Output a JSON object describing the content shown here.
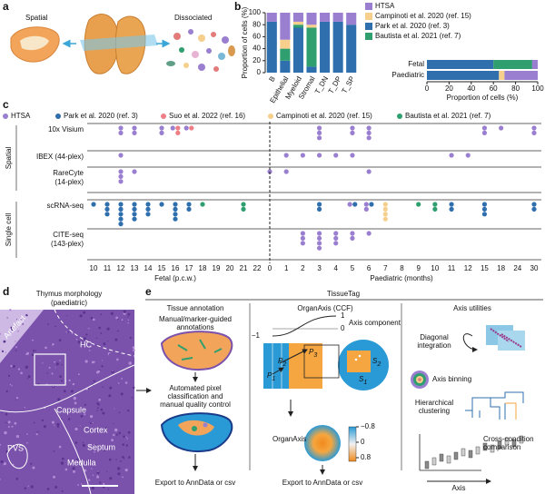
{
  "panel_a": {
    "label": "a",
    "spatial": "Spatial",
    "dissociated": "Dissociated"
  },
  "chart_data": [
    {
      "type": "stacked_bar",
      "panel_label": "b",
      "ylabel": "Proportion of cells (%)",
      "categories": [
        "B",
        "Epithelial",
        "Myeloid",
        "Stromal",
        "T_DN",
        "T_DP",
        "T_SP"
      ],
      "ylim": [
        0,
        100
      ],
      "yticks": [
        0,
        20,
        40,
        60,
        80,
        100
      ],
      "series": [
        {
          "name": "HTSA",
          "color": "#9a7fd0",
          "values": [
            15,
            45,
            15,
            20,
            15,
            15,
            20
          ]
        },
        {
          "name": "Campinoti et al. 2020 (ref. 15)",
          "color": "#f6cf8c",
          "values": [
            0,
            15,
            5,
            5,
            0,
            0,
            0
          ]
        },
        {
          "name": "Park et al. 2020 (ref. 3)",
          "color": "#2f6fae",
          "values": [
            85,
            20,
            75,
            10,
            85,
            85,
            80
          ]
        },
        {
          "name": "Bautista et al. 2021 (ref. 7)",
          "color": "#2f9f6f",
          "values": [
            0,
            20,
            5,
            65,
            0,
            0,
            0
          ]
        }
      ]
    },
    {
      "type": "stacked_hbar",
      "xlabel": "Proportion of cells (%)",
      "categories": [
        "Fetal",
        "Paediatric"
      ],
      "xlim": [
        0,
        100
      ],
      "xticks": [
        0,
        20,
        40,
        60,
        80,
        100
      ],
      "series": [
        {
          "name": "HTSA",
          "color": "#9a7fd0",
          "values": [
            5,
            30
          ]
        },
        {
          "name": "Campinoti et al. 2020 (ref. 15)",
          "color": "#f6cf8c",
          "values": [
            0,
            5
          ]
        },
        {
          "name": "Park et al. 2020 (ref. 3)",
          "color": "#2f6fae",
          "values": [
            60,
            65
          ]
        },
        {
          "name": "Bautista et al. 2021 (ref. 7)",
          "color": "#2f9f6f",
          "values": [
            35,
            0
          ]
        }
      ]
    },
    {
      "type": "dot_matrix",
      "panel_label": "c",
      "series": [
        {
          "name": "HTSA",
          "color": "#9a7fd0"
        },
        {
          "name": "Park et al. 2020 (ref. 3)",
          "color": "#2f6fae"
        },
        {
          "name": "Suo et al. 2022 (ref. 16)",
          "color": "#ee7f86"
        },
        {
          "name": "Campinoti et al. 2020 (ref. 15)",
          "color": "#f6cf8c"
        },
        {
          "name": "Bautista et al. 2021 (ref. 7)",
          "color": "#2f9f6f"
        }
      ],
      "fetal_label": "Fetal (p.c.w.)",
      "paediatric_label": "Paediatric (months)",
      "fetal_ticks": [
        10,
        11,
        12,
        13,
        14,
        15,
        16,
        17,
        18,
        19,
        20,
        21,
        22
      ],
      "paediatric_ticks": [
        0,
        1,
        2,
        3,
        4,
        5,
        6,
        7,
        8,
        9,
        10,
        11,
        12,
        15,
        18,
        24,
        30
      ],
      "groups": [
        {
          "name": "Spatial",
          "rows": [
            {
              "label": [
                "10x Visium"
              ],
              "fetal": [
                {
                  "week": 12,
                  "counts": [
                    2,
                    0,
                    0,
                    0,
                    0
                  ]
                },
                {
                  "week": 13,
                  "counts": [
                    2,
                    0,
                    0,
                    0,
                    0
                  ]
                },
                {
                  "week": 15,
                  "counts": [
                    2,
                    0,
                    0,
                    0,
                    0
                  ]
                },
                {
                  "week": 16,
                  "counts": [
                    1,
                    0,
                    2,
                    0,
                    0
                  ]
                },
                {
                  "week": 17,
                  "counts": [
                    1,
                    0,
                    1,
                    0,
                    0
                  ]
                }
              ],
              "paediatric": [
                {
                  "month": 3,
                  "counts": [
                    3,
                    0,
                    0,
                    0,
                    0
                  ]
                },
                {
                  "month": 5,
                  "counts": [
                    2,
                    0,
                    0,
                    0,
                    0
                  ]
                },
                {
                  "month": 6,
                  "counts": [
                    3,
                    0,
                    0,
                    0,
                    0
                  ]
                },
                {
                  "month": 15,
                  "counts": [
                    2,
                    0,
                    0,
                    0,
                    0
                  ]
                },
                {
                  "month": 18,
                  "counts": [
                    1,
                    0,
                    0,
                    0,
                    0
                  ]
                },
                {
                  "month": 30,
                  "counts": [
                    2,
                    0,
                    0,
                    0,
                    0
                  ]
                }
              ]
            },
            {
              "label": [
                "IBEX (44-plex)"
              ],
              "fetal": [
                {
                  "week": 12,
                  "counts": [
                    1,
                    0,
                    0,
                    0,
                    0
                  ]
                }
              ],
              "paediatric": [
                {
                  "month": 1,
                  "counts": [
                    1,
                    0,
                    0,
                    0,
                    0
                  ]
                },
                {
                  "month": 2,
                  "counts": [
                    1,
                    0,
                    0,
                    0,
                    0
                  ]
                },
                {
                  "month": 3,
                  "counts": [
                    1,
                    0,
                    0,
                    0,
                    0
                  ]
                },
                {
                  "month": 4,
                  "counts": [
                    1,
                    0,
                    0,
                    0,
                    0
                  ]
                },
                {
                  "month": 5,
                  "counts": [
                    1,
                    0,
                    0,
                    0,
                    0
                  ]
                },
                {
                  "month": 11,
                  "counts": [
                    1,
                    0,
                    0,
                    0,
                    0
                  ]
                },
                {
                  "month": 12,
                  "counts": [
                    1,
                    0,
                    0,
                    0,
                    0
                  ]
                }
              ]
            },
            {
              "label": [
                "RareCyte",
                "(14-plex)"
              ],
              "fetal": [
                {
                  "week": 12,
                  "counts": [
                    3,
                    0,
                    0,
                    0,
                    0
                  ]
                },
                {
                  "week": 13,
                  "counts": [
                    1,
                    0,
                    0,
                    0,
                    0
                  ]
                }
              ],
              "paediatric": [
                {
                  "month": 0,
                  "counts": [
                    1,
                    0,
                    0,
                    0,
                    0
                  ]
                },
                {
                  "month": 1,
                  "counts": [
                    1,
                    0,
                    0,
                    0,
                    0
                  ]
                },
                {
                  "month": 6,
                  "counts": [
                    1,
                    0,
                    0,
                    0,
                    0
                  ]
                }
              ]
            }
          ]
        },
        {
          "name": "Single cell",
          "rows": [
            {
              "label": [
                "scRNA-seq"
              ],
              "fetal": [
                {
                  "week": 10,
                  "counts": [
                    0,
                    1,
                    0,
                    0,
                    0
                  ]
                },
                {
                  "week": 11,
                  "counts": [
                    0,
                    3,
                    0,
                    0,
                    0
                  ]
                },
                {
                  "week": 12,
                  "counts": [
                    0,
                    5,
                    0,
                    0,
                    0
                  ]
                },
                {
                  "week": 13,
                  "counts": [
                    0,
                    4,
                    0,
                    0,
                    0
                  ]
                },
                {
                  "week": 14,
                  "counts": [
                    0,
                    3,
                    0,
                    0,
                    0
                  ]
                },
                {
                  "week": 15,
                  "counts": [
                    0,
                    1,
                    0,
                    0,
                    0
                  ]
                },
                {
                  "week": 16,
                  "counts": [
                    0,
                    4,
                    0,
                    0,
                    0
                  ]
                },
                {
                  "week": 17,
                  "counts": [
                    0,
                    2,
                    0,
                    0,
                    0
                  ]
                },
                {
                  "week": 18,
                  "counts": [
                    0,
                    0,
                    0,
                    0,
                    1
                  ]
                },
                {
                  "week": 21,
                  "counts": [
                    0,
                    0,
                    0,
                    0,
                    2
                  ]
                }
              ],
              "paediatric": [
                {
                  "month": 3,
                  "counts": [
                    0,
                    2,
                    0,
                    0,
                    0
                  ]
                },
                {
                  "month": 5,
                  "counts": [
                    1,
                    1,
                    0,
                    0,
                    0
                  ]
                },
                {
                  "month": 6,
                  "counts": [
                    2,
                    1,
                    0,
                    0,
                    0
                  ]
                },
                {
                  "month": 7,
                  "counts": [
                    0,
                    0,
                    0,
                    4,
                    0
                  ]
                },
                {
                  "month": 9,
                  "counts": [
                    0,
                    0,
                    0,
                    0,
                    1
                  ]
                },
                {
                  "month": 10,
                  "counts": [
                    0,
                    0,
                    0,
                    0,
                    2
                  ]
                },
                {
                  "month": 11,
                  "counts": [
                    0,
                    2,
                    0,
                    0,
                    0
                  ]
                },
                {
                  "month": 15,
                  "counts": [
                    0,
                    3,
                    0,
                    0,
                    0
                  ]
                },
                {
                  "month": 30,
                  "counts": [
                    0,
                    2,
                    0,
                    0,
                    0
                  ]
                }
              ]
            },
            {
              "label": [
                "CITE-seq",
                "(143-plex)"
              ],
              "fetal": [],
              "paediatric": [
                {
                  "month": 2,
                  "counts": [
                    3,
                    0,
                    0,
                    0,
                    0
                  ]
                },
                {
                  "month": 3,
                  "counts": [
                    4,
                    0,
                    0,
                    0,
                    0
                  ]
                },
                {
                  "month": 4,
                  "counts": [
                    3,
                    0,
                    0,
                    0,
                    0
                  ]
                },
                {
                  "month": 5,
                  "counts": [
                    2,
                    0,
                    0,
                    0,
                    0
                  ]
                },
                {
                  "month": 6,
                  "counts": [
                    1,
                    0,
                    0,
                    0,
                    0
                  ]
                }
              ]
            }
          ]
        }
      ]
    }
  ],
  "panel_d": {
    "label": "d",
    "title": [
      "Thymus morphology",
      "(paediatric)"
    ],
    "regions": {
      "artefact": "Artefact",
      "hc": "HC",
      "capsule": "Capsule",
      "cortex": "Cortex",
      "septum": "Septum",
      "medulla": "Medulla",
      "pvs": "PVS"
    }
  },
  "panel_e": {
    "label": "e",
    "title": "TissueTag",
    "annotation": {
      "title": "Tissue annotation",
      "manual": [
        "Manual/marker-guided",
        "annotations"
      ],
      "automated": [
        "Automated pixel",
        "classification and",
        "manual quality control"
      ],
      "export": "Export to AnnData or csv"
    },
    "organaxis": {
      "title": "OrganAxis (CCF)",
      "component": "Axis component",
      "curve_ticks": [
        "1",
        "0",
        "−1"
      ],
      "points": [
        {
          "letter": "P",
          "sub": "3"
        },
        {
          "letter": "P",
          "sub": "2"
        },
        {
          "letter": "P",
          "sub": "1"
        }
      ],
      "structures": [
        {
          "letter": "S",
          "sub": "2"
        },
        {
          "letter": "S",
          "sub": "1"
        }
      ],
      "axis_name": "OrganAxis",
      "colorbar_ticks": [
        "−0.8",
        "0",
        "0.8"
      ],
      "export": "Export to AnnData or csv"
    },
    "utilities": {
      "title": "Axis utilities",
      "diagonal": [
        "Diagonal",
        "integration"
      ],
      "binning": "Axis binning",
      "clustering": [
        "Hierarchical",
        "clustering"
      ],
      "comparison": [
        "Cross-condition",
        "comparison"
      ],
      "axis": "Axis"
    }
  }
}
